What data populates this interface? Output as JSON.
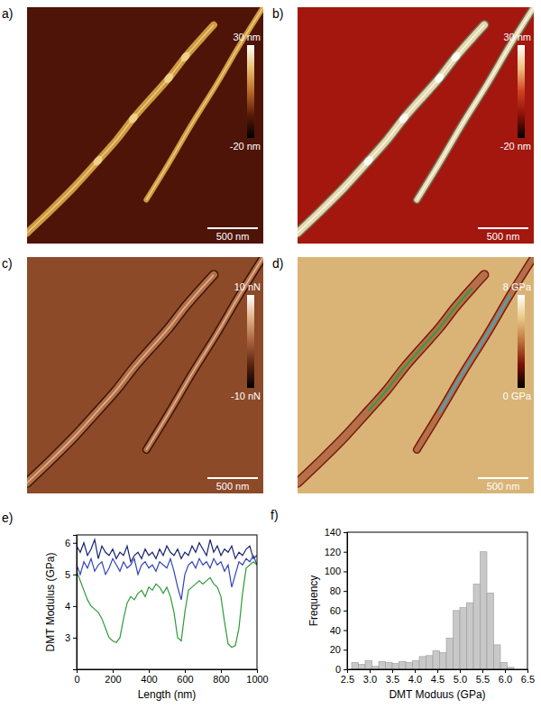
{
  "images": [
    {
      "label": "a)",
      "colorbar": {
        "range": [
          -20,
          30
        ],
        "ticks": [
          {
            "value": 30,
            "label": "30 nm"
          },
          {
            "value": -20,
            "label": "-20 nm"
          }
        ]
      },
      "scale_bar": "500 nm"
    },
    {
      "label": "b)",
      "colorbar": {
        "range": [
          -20,
          30
        ],
        "ticks": [
          {
            "value": 30,
            "label": "30 nm"
          },
          {
            "value": -20,
            "label": "-20 nm"
          }
        ]
      },
      "scale_bar": "500 nm"
    },
    {
      "label": "c)",
      "colorbar": {
        "range": [
          -10,
          10
        ],
        "ticks": [
          {
            "value": 10,
            "label": "10 nN"
          },
          {
            "value": -10,
            "label": "-10 nN"
          }
        ]
      },
      "scale_bar": "500 nm"
    },
    {
      "label": "d)",
      "colorbar": {
        "range": [
          0,
          8
        ],
        "ticks": [
          {
            "value": 8,
            "label": "8 GPa"
          },
          {
            "value": 0,
            "label": "0 GPa"
          }
        ]
      },
      "scale_bar": "500 nm"
    }
  ],
  "chart_data": [
    {
      "type": "line",
      "label": "e)",
      "x_label": "Length (nm)",
      "y_label": "DMT Modulus (GPa)",
      "x": [
        0,
        20,
        40,
        60,
        80,
        100,
        120,
        140,
        160,
        180,
        200,
        220,
        240,
        260,
        280,
        300,
        320,
        340,
        360,
        380,
        400,
        420,
        440,
        460,
        480,
        500,
        520,
        540,
        560,
        580,
        600,
        620,
        640,
        660,
        680,
        700,
        720,
        740,
        760,
        780,
        800,
        820,
        840,
        860,
        880,
        900,
        920,
        940,
        960,
        980,
        1000
      ],
      "series": [
        {
          "color": "#1a2370",
          "values": [
            5.9,
            5.7,
            6.0,
            5.6,
            5.8,
            6.1,
            5.5,
            5.9,
            5.7,
            5.6,
            5.8,
            5.5,
            5.7,
            5.6,
            5.9,
            5.4,
            5.6,
            5.7,
            5.5,
            5.8,
            5.6,
            5.7,
            5.5,
            5.8,
            5.6,
            5.9,
            5.7,
            5.6,
            5.8,
            5.5,
            5.7,
            5.6,
            5.9,
            5.7,
            6.0,
            5.8,
            5.6,
            6.1,
            5.7,
            5.9,
            5.6,
            5.8,
            5.7,
            5.9,
            5.5,
            5.7,
            5.6,
            5.8,
            5.9,
            5.5,
            5.6
          ]
        },
        {
          "color": "#2f44b8",
          "values": [
            5.3,
            5.0,
            5.4,
            5.2,
            5.5,
            5.1,
            5.3,
            5.4,
            5.0,
            5.2,
            5.5,
            5.3,
            5.1,
            5.4,
            5.2,
            5.3,
            5.5,
            5.0,
            5.3,
            5.4,
            5.2,
            5.3,
            5.1,
            5.4,
            5.3,
            5.2,
            5.5,
            5.1,
            4.6,
            4.2,
            5.0,
            5.3,
            5.4,
            5.2,
            5.5,
            5.3,
            5.4,
            5.2,
            5.5,
            5.3,
            5.4,
            5.1,
            5.3,
            4.6,
            5.0,
            5.4,
            5.3,
            5.5,
            5.4,
            5.6,
            5.3
          ]
        },
        {
          "color": "#2e9a3a",
          "values": [
            5.1,
            4.8,
            4.5,
            4.2,
            4.0,
            3.9,
            3.8,
            3.6,
            3.3,
            3.0,
            2.9,
            2.85,
            3.0,
            3.6,
            4.1,
            4.3,
            4.2,
            4.4,
            4.5,
            4.3,
            4.6,
            4.5,
            4.7,
            4.6,
            4.4,
            4.6,
            4.3,
            3.8,
            3.0,
            2.9,
            3.8,
            4.5,
            4.6,
            4.7,
            4.8,
            4.7,
            4.8,
            4.9,
            4.7,
            4.6,
            4.3,
            3.5,
            2.8,
            2.7,
            2.75,
            3.3,
            4.4,
            5.2,
            5.3,
            5.4,
            5.3
          ]
        }
      ],
      "xlim": [
        0,
        1000
      ],
      "xticks": [
        0,
        200,
        400,
        600,
        800,
        1000
      ],
      "ylim": [
        2,
        6.25
      ],
      "yticks": [
        3,
        4,
        5,
        6
      ]
    },
    {
      "type": "histogram",
      "label": "f)",
      "x_label": "DMT Moduus (GPa)",
      "y_label": "Frequency",
      "color": "#c8c8c8",
      "bins": [
        2.6,
        2.75,
        2.9,
        3.05,
        3.2,
        3.35,
        3.5,
        3.65,
        3.8,
        3.95,
        4.1,
        4.25,
        4.4,
        4.55,
        4.7,
        4.85,
        5.0,
        5.15,
        5.3,
        5.45,
        5.6,
        5.75,
        5.9,
        6.05,
        6.2
      ],
      "counts": [
        7,
        5,
        9,
        3,
        8,
        7,
        6,
        8,
        7,
        9,
        13,
        14,
        19,
        17,
        32,
        60,
        63,
        68,
        87,
        120,
        78,
        25,
        7,
        2
      ],
      "xlim": [
        2.5,
        6.5
      ],
      "xticks": [
        {
          "value": 2.5,
          "label": "2.5"
        },
        {
          "value": 3,
          "label": "3.0"
        },
        {
          "value": 3.5,
          "label": "3.5"
        },
        {
          "value": 4,
          "label": "4.0"
        },
        {
          "value": 4.5,
          "label": "4.5"
        },
        {
          "value": 5,
          "label": "5.0"
        },
        {
          "value": 5.5,
          "label": "5.5"
        },
        {
          "value": 6,
          "label": "6.0"
        },
        {
          "value": 6.5,
          "label": "6.5"
        }
      ],
      "ylim": [
        0,
        140
      ],
      "yticks": [
        0,
        20,
        40,
        60,
        80,
        100,
        120,
        140
      ]
    }
  ]
}
